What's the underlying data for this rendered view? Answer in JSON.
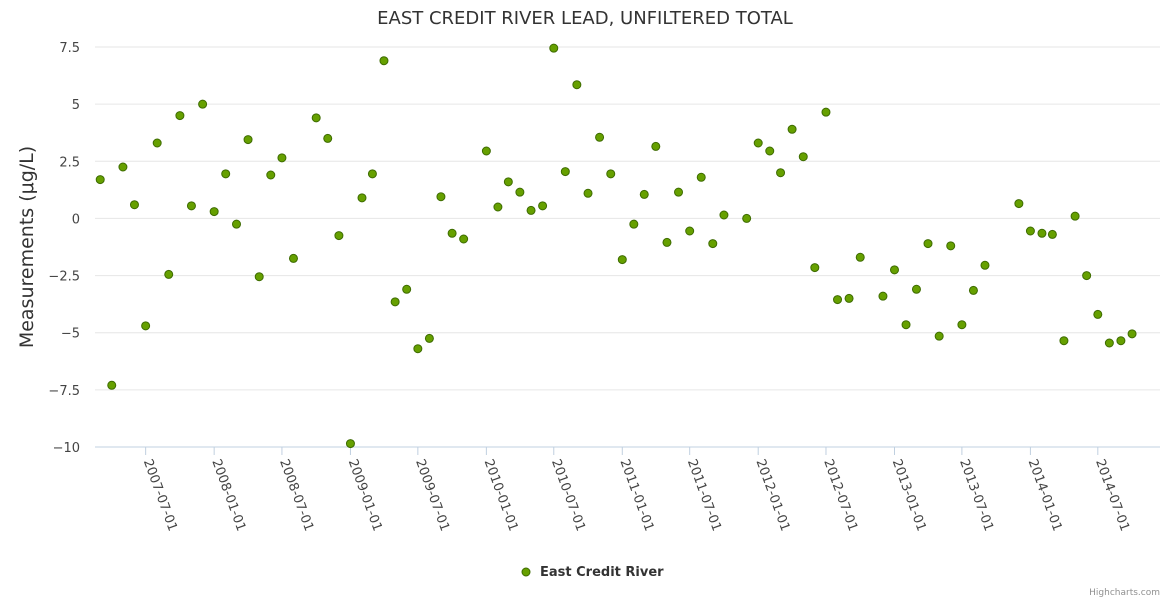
{
  "chart_data": {
    "type": "scatter",
    "title": "EAST CREDIT RIVER LEAD, UNFILTERED TOTAL",
    "ylabel": "Measurements (μg/L)",
    "xlabel": "",
    "ylim": [
      -10,
      7.5
    ],
    "yticks": [
      7.5,
      5,
      2.5,
      0,
      -2.5,
      -5,
      -7.5,
      -10
    ],
    "ytick_labels": [
      "7.5",
      "5",
      "2.5",
      "0",
      "−2.5",
      "−5",
      "−7.5",
      "−10"
    ],
    "xlim": [
      "2007-02-15",
      "2014-12-15"
    ],
    "xticks": [
      "2007-07-01",
      "2008-01-01",
      "2008-07-01",
      "2009-01-01",
      "2009-07-01",
      "2010-01-01",
      "2010-07-01",
      "2011-01-01",
      "2011-07-01",
      "2012-01-01",
      "2012-07-01",
      "2013-01-01",
      "2013-07-01",
      "2014-01-01",
      "2014-07-01"
    ],
    "grid": true,
    "legend_position": "bottom-center",
    "series": [
      {
        "name": "East Credit River",
        "color": "#66a000",
        "border_color": "#3d6b00",
        "points": [
          {
            "x": "2007-03-01",
            "y": 1.7
          },
          {
            "x": "2007-04-01",
            "y": -7.3
          },
          {
            "x": "2007-05-01",
            "y": 2.25
          },
          {
            "x": "2007-06-01",
            "y": 0.6
          },
          {
            "x": "2007-07-01",
            "y": -4.7
          },
          {
            "x": "2007-08-01",
            "y": 3.3
          },
          {
            "x": "2007-09-01",
            "y": -2.45
          },
          {
            "x": "2007-10-01",
            "y": 4.5
          },
          {
            "x": "2007-11-01",
            "y": 0.55
          },
          {
            "x": "2007-12-01",
            "y": 5.0
          },
          {
            "x": "2008-01-01",
            "y": 0.3
          },
          {
            "x": "2008-02-01",
            "y": 1.95
          },
          {
            "x": "2008-03-01",
            "y": -0.25
          },
          {
            "x": "2008-04-01",
            "y": 3.45
          },
          {
            "x": "2008-05-01",
            "y": -2.55
          },
          {
            "x": "2008-06-01",
            "y": 1.9
          },
          {
            "x": "2008-07-01",
            "y": 2.65
          },
          {
            "x": "2008-08-01",
            "y": -1.75
          },
          {
            "x": "2008-10-01",
            "y": 4.4
          },
          {
            "x": "2008-11-01",
            "y": 3.5
          },
          {
            "x": "2008-12-01",
            "y": -0.75
          },
          {
            "x": "2009-01-01",
            "y": -9.85
          },
          {
            "x": "2009-02-01",
            "y": 0.9
          },
          {
            "x": "2009-03-01",
            "y": 1.95
          },
          {
            "x": "2009-04-01",
            "y": 6.9
          },
          {
            "x": "2009-05-01",
            "y": -3.65
          },
          {
            "x": "2009-06-01",
            "y": -3.1
          },
          {
            "x": "2009-07-01",
            "y": -5.7
          },
          {
            "x": "2009-08-01",
            "y": -5.25
          },
          {
            "x": "2009-09-01",
            "y": 0.95
          },
          {
            "x": "2009-10-01",
            "y": -0.65
          },
          {
            "x": "2009-11-01",
            "y": -0.9
          },
          {
            "x": "2010-01-01",
            "y": 2.95
          },
          {
            "x": "2010-02-01",
            "y": 0.5
          },
          {
            "x": "2010-03-01",
            "y": 1.6
          },
          {
            "x": "2010-04-01",
            "y": 1.15
          },
          {
            "x": "2010-05-01",
            "y": 0.35
          },
          {
            "x": "2010-06-01",
            "y": 0.55
          },
          {
            "x": "2010-07-01",
            "y": 7.45
          },
          {
            "x": "2010-08-01",
            "y": 2.05
          },
          {
            "x": "2010-09-01",
            "y": 5.85
          },
          {
            "x": "2010-10-01",
            "y": 1.1
          },
          {
            "x": "2010-11-01",
            "y": 3.55
          },
          {
            "x": "2010-12-01",
            "y": 1.95
          },
          {
            "x": "2011-01-01",
            "y": -1.8
          },
          {
            "x": "2011-02-01",
            "y": -0.25
          },
          {
            "x": "2011-03-01",
            "y": 1.05
          },
          {
            "x": "2011-04-01",
            "y": 3.15
          },
          {
            "x": "2011-05-01",
            "y": -1.05
          },
          {
            "x": "2011-06-01",
            "y": 1.15
          },
          {
            "x": "2011-07-01",
            "y": -0.55
          },
          {
            "x": "2011-08-01",
            "y": 1.8
          },
          {
            "x": "2011-09-01",
            "y": -1.1
          },
          {
            "x": "2011-10-01",
            "y": 0.15
          },
          {
            "x": "2011-12-01",
            "y": 0.0
          },
          {
            "x": "2012-01-01",
            "y": 3.3
          },
          {
            "x": "2012-02-01",
            "y": 2.95
          },
          {
            "x": "2012-03-01",
            "y": 2.0
          },
          {
            "x": "2012-04-01",
            "y": 3.9
          },
          {
            "x": "2012-05-01",
            "y": 2.7
          },
          {
            "x": "2012-06-01",
            "y": -2.15
          },
          {
            "x": "2012-07-01",
            "y": 4.65
          },
          {
            "x": "2012-08-01",
            "y": -3.55
          },
          {
            "x": "2012-09-01",
            "y": -3.5
          },
          {
            "x": "2012-10-01",
            "y": -1.7
          },
          {
            "x": "2012-12-01",
            "y": -3.4
          },
          {
            "x": "2013-01-01",
            "y": -2.25
          },
          {
            "x": "2013-02-01",
            "y": -4.65
          },
          {
            "x": "2013-03-01",
            "y": -3.1
          },
          {
            "x": "2013-04-01",
            "y": -1.1
          },
          {
            "x": "2013-05-01",
            "y": -5.15
          },
          {
            "x": "2013-06-01",
            "y": -1.2
          },
          {
            "x": "2013-07-01",
            "y": -4.65
          },
          {
            "x": "2013-08-01",
            "y": -3.15
          },
          {
            "x": "2013-09-01",
            "y": -2.05
          },
          {
            "x": "2013-12-01",
            "y": 0.65
          },
          {
            "x": "2014-01-01",
            "y": -0.55
          },
          {
            "x": "2014-02-01",
            "y": -0.65
          },
          {
            "x": "2014-03-01",
            "y": -0.7
          },
          {
            "x": "2014-04-01",
            "y": -5.35
          },
          {
            "x": "2014-05-01",
            "y": 0.1
          },
          {
            "x": "2014-06-01",
            "y": -2.5
          },
          {
            "x": "2014-07-01",
            "y": -4.2
          },
          {
            "x": "2014-08-01",
            "y": -5.45
          },
          {
            "x": "2014-09-01",
            "y": -5.35
          },
          {
            "x": "2014-10-01",
            "y": -5.05
          }
        ]
      }
    ]
  },
  "credits": "Highcharts.com"
}
